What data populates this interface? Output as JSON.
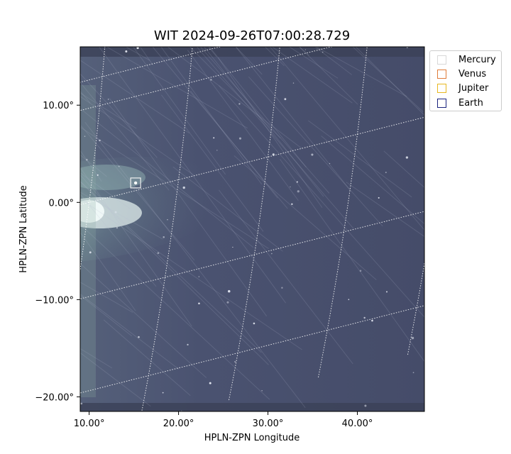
{
  "chart_data": {
    "type": "scatter",
    "title": "WIT 2024-09-26T07:00:28.729",
    "xlabel": "HPLN-ZPN Longitude",
    "ylabel": "HPLN-ZPN Latitude",
    "xlim": [
      9,
      47.5
    ],
    "ylim": [
      -21.5,
      16
    ],
    "xticks": [
      10,
      20,
      30,
      40
    ],
    "xtick_labels": [
      "10.00°",
      "20.00°",
      "30.00°",
      "40.00°"
    ],
    "yticks": [
      10,
      0,
      -10,
      -20
    ],
    "ytick_labels": [
      "10.00°",
      "0.00°",
      "−10.00°",
      "−20.00°"
    ],
    "grid": true,
    "legend_position": "outside-top-right",
    "series": [
      {
        "name": "Mercury",
        "color": "#f0f0f0",
        "points": [
          {
            "x": 15.2,
            "y": 2.0
          }
        ]
      },
      {
        "name": "Venus",
        "color": "#e07b39",
        "points": []
      },
      {
        "name": "Jupiter",
        "color": "#e8b820",
        "points": []
      },
      {
        "name": "Earth",
        "color": "#1a237e",
        "points": []
      }
    ]
  }
}
